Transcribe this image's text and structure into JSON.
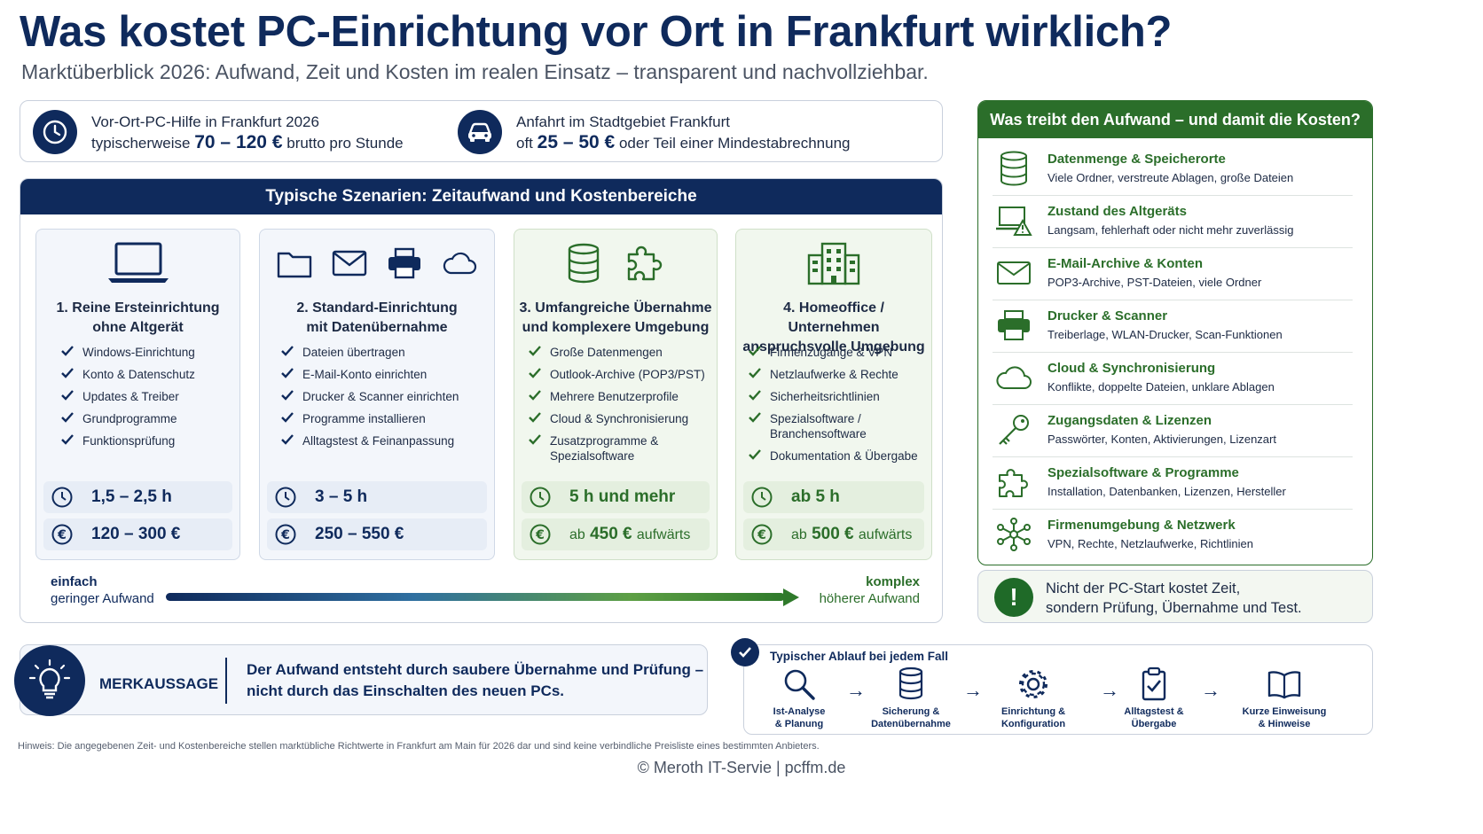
{
  "header": {
    "title": "Was kostet PC-Einrichtung vor Ort in Frankfurt wirklich?",
    "subtitle": "Marktüberblick 2026: Aufwand, Zeit und Kosten im realen Einsatz – transparent und nachvollziehbar."
  },
  "info": {
    "hourly": {
      "title": "Vor-Ort-PC-Hilfe in Frankfurt 2026",
      "prefix": "typischerweise",
      "value": "70 – 120 €",
      "suffix": "brutto pro Stunde",
      "icon": "clock-icon"
    },
    "travel": {
      "title": "Anfahrt im Stadtgebiet Frankfurt",
      "prefix": "oft",
      "value": "25 – 50 €",
      "suffix": "oder Teil einer Mindestabrechnung",
      "icon": "car-icon"
    }
  },
  "scenarios": {
    "heading": "Typische Szenarien: Zeitaufwand und Kostenbereiche",
    "cards": [
      {
        "title1": "1. Reine Ersteinrichtung",
        "title2": "ohne Altgerät",
        "items": [
          "Windows-Einrichtung",
          "Konto & Datenschutz",
          "Updates & Treiber",
          "Grundprogramme",
          "Funktionsprüfung"
        ],
        "time": "1,5 – 2,5 h",
        "price": "120 – 300 €",
        "price_suffix": "",
        "icons": [
          "laptop-icon"
        ]
      },
      {
        "title1": "2. Standard-Einrichtung",
        "title2": "mit Datenübernahme",
        "items": [
          "Dateien übertragen",
          "E-Mail-Konto einrichten",
          "Drucker & Scanner einrichten",
          "Programme installieren",
          "Alltagstest & Feinanpassung"
        ],
        "time": "3 – 5 h",
        "price": "250 – 550 €",
        "price_suffix": "",
        "icons": [
          "folder-icon",
          "mail-icon",
          "printer-icon",
          "cloud-icon"
        ]
      },
      {
        "title1": "3. Umfangreiche Übernahme",
        "title2": "und komplexere Umgebung",
        "items": [
          "Große Datenmengen",
          "Outlook-Archive (POP3/PST)",
          "Mehrere Benutzerprofile",
          "Cloud & Synchronisierung",
          "Zusatzprogramme & Spezialsoftware"
        ],
        "time": "5 h und mehr",
        "price_prefix": "ab",
        "price": "450 €",
        "price_suffix": "aufwärts",
        "icons": [
          "database-icon",
          "puzzle-icon"
        ]
      },
      {
        "title1": "4. Homeoffice / Unternehmen",
        "title2": "anspruchsvolle Umgebung",
        "items": [
          "Firmenzugänge & VPN",
          "Netzlaufwerke & Rechte",
          "Sicherheitsrichtlinien",
          "Spezialsoftware / Branchensoftware",
          "Dokumentation & Übergabe"
        ],
        "time": "ab 5 h",
        "price_prefix": "ab",
        "price": "500 €",
        "price_suffix": "aufwärts",
        "icons": [
          "building-icon"
        ]
      }
    ],
    "scale": {
      "left_title": "einfach",
      "left_sub": "geringer Aufwand",
      "right_title": "komplex",
      "right_sub": "höherer Aufwand"
    }
  },
  "drivers": {
    "heading": "Was treibt den Aufwand – und damit die Kosten?",
    "items": [
      {
        "title": "Datenmenge & Speicherorte",
        "desc": "Viele Ordner, verstreute Ablagen, große Dateien",
        "icon": "database-icon"
      },
      {
        "title": "Zustand des Altgeräts",
        "desc": "Langsam, fehlerhaft oder nicht mehr zuverlässig",
        "icon": "laptop-warning-icon"
      },
      {
        "title": "E-Mail-Archive & Konten",
        "desc": "POP3-Archive, PST-Dateien, viele Ordner",
        "icon": "mail-icon"
      },
      {
        "title": "Drucker & Scanner",
        "desc": "Treiberlage, WLAN-Drucker, Scan-Funktionen",
        "icon": "printer-icon"
      },
      {
        "title": "Cloud & Synchronisierung",
        "desc": "Konflikte, doppelte Dateien, unklare Ablagen",
        "icon": "cloud-icon"
      },
      {
        "title": "Zugangsdaten & Lizenzen",
        "desc": "Passwörter, Konten, Aktivierungen, Lizenzart",
        "icon": "key-icon"
      },
      {
        "title": "Spezialsoftware & Programme",
        "desc": "Installation, Datenbanken, Lizenzen, Hersteller",
        "icon": "puzzle-icon"
      },
      {
        "title": "Firmenumgebung & Netzwerk",
        "desc": "VPN, Rechte, Netzlaufwerke, Richtlinien",
        "icon": "network-icon"
      }
    ],
    "note_line1": "Nicht der PC-Start kostet Zeit,",
    "note_line2": "sondern Prüfung, Übernahme und Test.",
    "note_icon": "!"
  },
  "merk": {
    "label": "MERKAUSSAGE",
    "line1": "Der Aufwand entsteht durch saubere Übernahme und Prüfung –",
    "line2": "nicht durch das Einschalten des neuen PCs.",
    "icon": "lightbulb-icon"
  },
  "process": {
    "title": "Typischer Ablauf bei jedem Fall",
    "steps": [
      {
        "l1": "Ist-Analyse",
        "l2": "& Planung",
        "icon": "search-icon"
      },
      {
        "l1": "Sicherung &",
        "l2": "Datenübernahme",
        "icon": "database-icon"
      },
      {
        "l1": "Einrichtung &",
        "l2": "Konfiguration",
        "icon": "gear-icon"
      },
      {
        "l1": "Alltagstest &",
        "l2": "Übergabe",
        "icon": "clipboard-check-icon"
      },
      {
        "l1": "Kurze Einweisung",
        "l2": "& Hinweise",
        "icon": "book-icon"
      }
    ],
    "arrow": "→"
  },
  "disclaimer": "Hinweis: Die angegebenen Zeit- und Kostenbereiche stellen marktübliche Richtwerte in Frankfurt am Main für 2026 dar und sind keine verbindliche Preisliste eines bestimmten Anbieters.",
  "footer": "© Meroth IT-Servie | pcffm.de",
  "colors": {
    "navy": "#0f2a5c",
    "green": "#2b6e2a"
  }
}
